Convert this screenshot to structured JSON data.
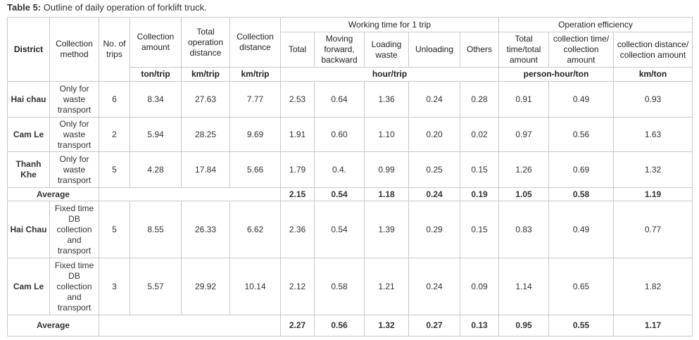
{
  "caption": {
    "label": "Table 5:",
    "text": "Outline of daily operation of forklift truck."
  },
  "table": {
    "header": {
      "district": "District",
      "method": "Collection method",
      "trips": "No. of trips",
      "amount": "Collection amount",
      "total_distance": "Total operation distance",
      "collection_distance": "Collection distance",
      "working_time": "Working time for 1 trip",
      "wt_total": "Total",
      "wt_moving": "Moving forward, backward",
      "wt_loading": "Loading waste",
      "wt_unloading": "Unloading",
      "wt_others": "Others",
      "efficiency": "Operation efficiency",
      "ef_total": "Total time/total amount",
      "ef_collection_time": "collection time/ collection amount",
      "ef_collection_distance": "collection distance/ collection amount"
    },
    "units": {
      "amount": "ton/trip",
      "total_distance": "km/trip",
      "collection_distance": "km/trip",
      "working_time": "hour/trip",
      "efficiency_time": "person-hour/ton",
      "efficiency_distance": "km/ton"
    },
    "rows": [
      {
        "cells": [
          "Hai chau",
          "Only for waste transport",
          "6",
          "8.34",
          "27.63",
          "7.77",
          "2.53",
          "0.64",
          "1.36",
          "0.24",
          "0.28",
          "0.91",
          "0.49",
          "0.93"
        ]
      },
      {
        "cells": [
          "Cam Le",
          "Only for waste transport",
          "2",
          "5.94",
          "28.25",
          "9.69",
          "1.91",
          "0.60",
          "1.10",
          "0.20",
          "0.02",
          "0.97",
          "0.56",
          "1.63"
        ]
      },
      {
        "cells": [
          "Thanh Khe",
          "Only for waste transport",
          "5",
          "4.28",
          "17.84",
          "5.66",
          "1.79",
          "0.4.",
          "0.99",
          "0.25",
          "0.15",
          "1.26",
          "0.69",
          "1.32"
        ]
      },
      {
        "label": "Average",
        "values": [
          "2.15",
          "0.54",
          "1.18",
          "0.24",
          "0.19",
          "1.05",
          "0.58",
          "1.19"
        ]
      },
      {
        "cells": [
          "Hai Chau",
          "Fixed time DB collection and transport",
          "5",
          "8.55",
          "26.33",
          "6.62",
          "2.36",
          "0.54",
          "1.39",
          "0.29",
          "0.15",
          "0.83",
          "0.49",
          "0.77"
        ]
      },
      {
        "cells": [
          "Cam Le",
          "Fixed time DB collection and transport",
          "3",
          "5.57",
          "29.92",
          "10.14",
          "2.12",
          "0.58",
          "1.21",
          "0.24",
          "0.09",
          "1.14",
          "0.65",
          "1.82"
        ]
      },
      {
        "label": "Average",
        "values": [
          "2.27",
          "0.56",
          "1.32",
          "0.27",
          "0.13",
          "0.95",
          "0.55",
          "1.17"
        ]
      }
    ]
  }
}
